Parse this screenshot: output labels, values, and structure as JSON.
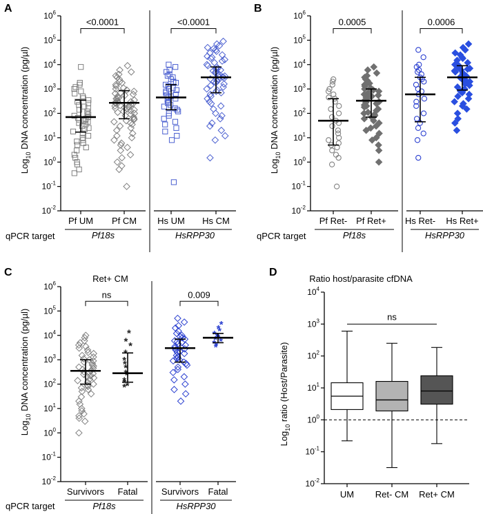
{
  "figure": {
    "ylabel_log": "Log",
    "ylabel_sub": "10",
    "ylabel_tail": " DNA concentration (pg/µl)",
    "qpcr_label": "qPCR target"
  },
  "chart_data": [
    {
      "id": "A",
      "type": "scatter",
      "panel_label": "A",
      "title": "",
      "scale": "log",
      "ylim_exp": [
        -2,
        6
      ],
      "groups": [
        {
          "target": "Pf18s",
          "categories": [
            {
              "name": "Pf UM",
              "marker": "square-open",
              "color": "#808080",
              "median": 70,
              "q1": 17,
              "q3": 350,
              "values": [
                8000,
                1800,
                1500,
                1200,
                1000,
                800,
                650,
                500,
                420,
                350,
                300,
                260,
                220,
                190,
                160,
                140,
                120,
                100,
                90,
                80,
                70,
                65,
                60,
                55,
                50,
                45,
                40,
                35,
                30,
                25,
                22,
                18,
                15,
                12,
                10,
                8,
                7,
                6,
                5,
                4,
                3,
                2,
                1.5,
                1,
                0.8,
                0.5,
                0.35
              ]
            },
            {
              "name": "Pf CM",
              "marker": "diamond-open",
              "color": "#808080",
              "median": 270,
              "q1": 60,
              "q3": 850,
              "values": [
                9000,
                6000,
                5000,
                4000,
                3500,
                3000,
                2500,
                2000,
                1800,
                1500,
                1300,
                1100,
                1000,
                900,
                800,
                700,
                650,
                600,
                550,
                500,
                450,
                420,
                400,
                380,
                350,
                320,
                300,
                280,
                270,
                260,
                250,
                230,
                210,
                200,
                190,
                180,
                170,
                160,
                150,
                140,
                130,
                120,
                110,
                100,
                90,
                80,
                70,
                60,
                55,
                50,
                45,
                40,
                35,
                30,
                25,
                20,
                15,
                12,
                10,
                8,
                6,
                5,
                4,
                3,
                2,
                1.5,
                1,
                0.7,
                0.5,
                0.1
              ]
            }
          ]
        },
        {
          "target": "HsRPP30",
          "categories": [
            {
              "name": "Hs UM",
              "marker": "square-open",
              "color": "#4a5fd0",
              "median": 450,
              "q1": 140,
              "q3": 1500,
              "values": [
                10000,
                8000,
                6000,
                5000,
                4000,
                3500,
                3000,
                2500,
                2000,
                1800,
                1500,
                1300,
                1100,
                1000,
                900,
                800,
                700,
                600,
                550,
                500,
                450,
                400,
                350,
                300,
                260,
                220,
                190,
                160,
                140,
                120,
                100,
                80,
                60,
                45,
                35,
                25,
                18,
                12,
                8,
                0.15
              ]
            },
            {
              "name": "Hs CM",
              "marker": "diamond-open",
              "color": "#4a5fd0",
              "median": 3000,
              "q1": 700,
              "q3": 8000,
              "values": [
                90000,
                70000,
                60000,
                50000,
                45000,
                40000,
                35000,
                30000,
                25000,
                22000,
                20000,
                18000,
                16000,
                14000,
                12000,
                10000,
                9000,
                8000,
                7000,
                6500,
                6000,
                5500,
                5000,
                4500,
                4000,
                3700,
                3400,
                3100,
                3000,
                2800,
                2600,
                2400,
                2200,
                2000,
                1800,
                1600,
                1400,
                1200,
                1000,
                900,
                800,
                700,
                600,
                500,
                400,
                300,
                250,
                200,
                150,
                100,
                80,
                60,
                40,
                30,
                20,
                12,
                8,
                1.5
              ]
            }
          ]
        }
      ],
      "comparisons": [
        {
          "label": "<0.0001",
          "from": 0,
          "to": 1,
          "y": 300000
        },
        {
          "label": "<0.0001",
          "from": 2,
          "to": 3,
          "y": 300000
        }
      ]
    },
    {
      "id": "B",
      "type": "scatter",
      "panel_label": "B",
      "title": "",
      "scale": "log",
      "ylim_exp": [
        -2,
        6
      ],
      "groups": [
        {
          "target": "Pf18s",
          "categories": [
            {
              "name": "Pf Ret-",
              "marker": "circle-open",
              "color": "#808080",
              "median": 50,
              "q1": 5,
              "q3": 400,
              "values": [
                2500,
                2000,
                1500,
                1000,
                800,
                600,
                450,
                400,
                300,
                200,
                150,
                100,
                70,
                50,
                40,
                30,
                20,
                15,
                10,
                8,
                6,
                5,
                4,
                3,
                2,
                1.5,
                0.8,
                0.1
              ]
            },
            {
              "name": "Pf Ret+",
              "marker": "diamond-filled",
              "color": "#707070",
              "median": 330,
              "q1": 70,
              "q3": 1000,
              "values": [
                8000,
                6000,
                4500,
                3500,
                3000,
                2500,
                2200,
                1900,
                1700,
                1500,
                1300,
                1100,
                1000,
                900,
                800,
                700,
                600,
                550,
                500,
                450,
                400,
                380,
                350,
                330,
                300,
                280,
                250,
                220,
                200,
                180,
                150,
                130,
                110,
                100,
                90,
                80,
                70,
                60,
                50,
                40,
                30,
                25,
                20,
                15,
                10,
                8,
                5,
                3,
                1
              ]
            }
          ]
        },
        {
          "target": "HsRPP30",
          "categories": [
            {
              "name": "Hs Ret-",
              "marker": "circle-open",
              "color": "#2a3fd0",
              "median": 600,
              "q1": 45,
              "q3": 3000,
              "values": [
                40000,
                20000,
                10000,
                8000,
                6000,
                5000,
                4000,
                3000,
                2500,
                2000,
                1500,
                1000,
                800,
                600,
                400,
                300,
                200,
                100,
                60,
                40,
                25,
                15,
                8,
                1.5
              ]
            },
            {
              "name": "Hs Ret+",
              "marker": "diamond-filled",
              "color": "#2a4fe0",
              "median": 3000,
              "q1": 900,
              "q3": 9000,
              "values": [
                70000,
                50000,
                40000,
                30000,
                25000,
                20000,
                18000,
                15000,
                12000,
                10000,
                9000,
                8000,
                7000,
                6500,
                6000,
                5500,
                5000,
                4500,
                4000,
                3700,
                3400,
                3000,
                2800,
                2600,
                2400,
                2200,
                2000,
                1800,
                1600,
                1400,
                1200,
                1000,
                900,
                800,
                700,
                600,
                500,
                400,
                300,
                250,
                200,
                150,
                100,
                60,
                40,
                20
              ]
            }
          ]
        }
      ],
      "comparisons": [
        {
          "label": "0.0005",
          "from": 0,
          "to": 1,
          "y": 300000
        },
        {
          "label": "0.0006",
          "from": 2,
          "to": 3,
          "y": 300000
        }
      ]
    },
    {
      "id": "C",
      "type": "scatter",
      "panel_label": "C",
      "title": "Ret+ CM",
      "scale": "log",
      "ylim_exp": [
        -2,
        6
      ],
      "groups": [
        {
          "target": "Pf18s",
          "categories": [
            {
              "name": "Survivors",
              "marker": "diamond-open",
              "color": "#808080",
              "median": 350,
              "q1": 100,
              "q3": 1000,
              "values": [
                10000,
                8000,
                6000,
                5000,
                4000,
                3500,
                3000,
                2500,
                2000,
                1800,
                1500,
                1300,
                1100,
                1000,
                900,
                800,
                700,
                600,
                550,
                500,
                450,
                400,
                350,
                320,
                300,
                270,
                250,
                220,
                200,
                180,
                160,
                140,
                120,
                100,
                90,
                80,
                70,
                60,
                50,
                40,
                30,
                20,
                15,
                10,
                8,
                6,
                5,
                4,
                3,
                1
              ]
            },
            {
              "name": "Fatal",
              "marker": "asterisk",
              "color": "#222222",
              "median": 280,
              "q1": 120,
              "q3": 1900,
              "values": [
                13000,
                6000,
                4000,
                2000,
                1000,
                700,
                500,
                300,
                250,
                150,
                120,
                90,
                80
              ]
            }
          ]
        },
        {
          "target": "HsRPP30",
          "categories": [
            {
              "name": "Survivors",
              "marker": "diamond-open",
              "color": "#2a3fd0",
              "median": 3000,
              "q1": 800,
              "q3": 7000,
              "values": [
                50000,
                35000,
                25000,
                20000,
                15000,
                12000,
                10000,
                9000,
                8000,
                7000,
                6000,
                5500,
                5000,
                4500,
                4000,
                3500,
                3000,
                2800,
                2500,
                2200,
                2000,
                1800,
                1500,
                1300,
                1100,
                1000,
                900,
                800,
                700,
                600,
                500,
                400,
                300,
                200,
                150,
                100,
                60,
                40,
                20
              ]
            },
            {
              "name": "Fatal",
              "marker": "asterisk",
              "color": "#2a3fd0",
              "median": 8000,
              "q1": 5000,
              "q3": 12000,
              "values": [
                30000,
                20000,
                16000,
                12000,
                10000,
                9000,
                8000,
                7000,
                6000,
                5000,
                4000,
                3500
              ]
            }
          ]
        }
      ],
      "comparisons": [
        {
          "label": "ns",
          "from": 0,
          "to": 1,
          "y": 250000
        },
        {
          "label": "0.009",
          "from": 2,
          "to": 3,
          "y": 250000
        }
      ]
    },
    {
      "id": "D",
      "type": "box",
      "panel_label": "D",
      "title": "Ratio host/parasite cfDNA",
      "ylabel_log": "Log",
      "ylabel_sub": "10",
      "ylabel_tail": " ratio (Host/Parasite)",
      "scale": "log",
      "ylim_exp": [
        -2,
        4
      ],
      "reference_line": 1,
      "categories": [
        "UM",
        "Ret- CM",
        "Ret+ CM"
      ],
      "boxes": [
        {
          "name": "UM",
          "fill": "#ffffff",
          "min": 0.22,
          "q1": 2.1,
          "median": 5.5,
          "q3": 14.5,
          "max": 600
        },
        {
          "name": "Ret- CM",
          "fill": "#b3b3b3",
          "min": 0.032,
          "q1": 1.9,
          "median": 4.2,
          "q3": 16,
          "max": 250
        },
        {
          "name": "Ret+ CM",
          "fill": "#555555",
          "min": 0.18,
          "q1": 3.1,
          "median": 8,
          "q3": 24,
          "max": 185
        }
      ],
      "comparisons": [
        {
          "label": "ns",
          "from": 0,
          "to": 2,
          "y": 1000
        }
      ]
    }
  ]
}
